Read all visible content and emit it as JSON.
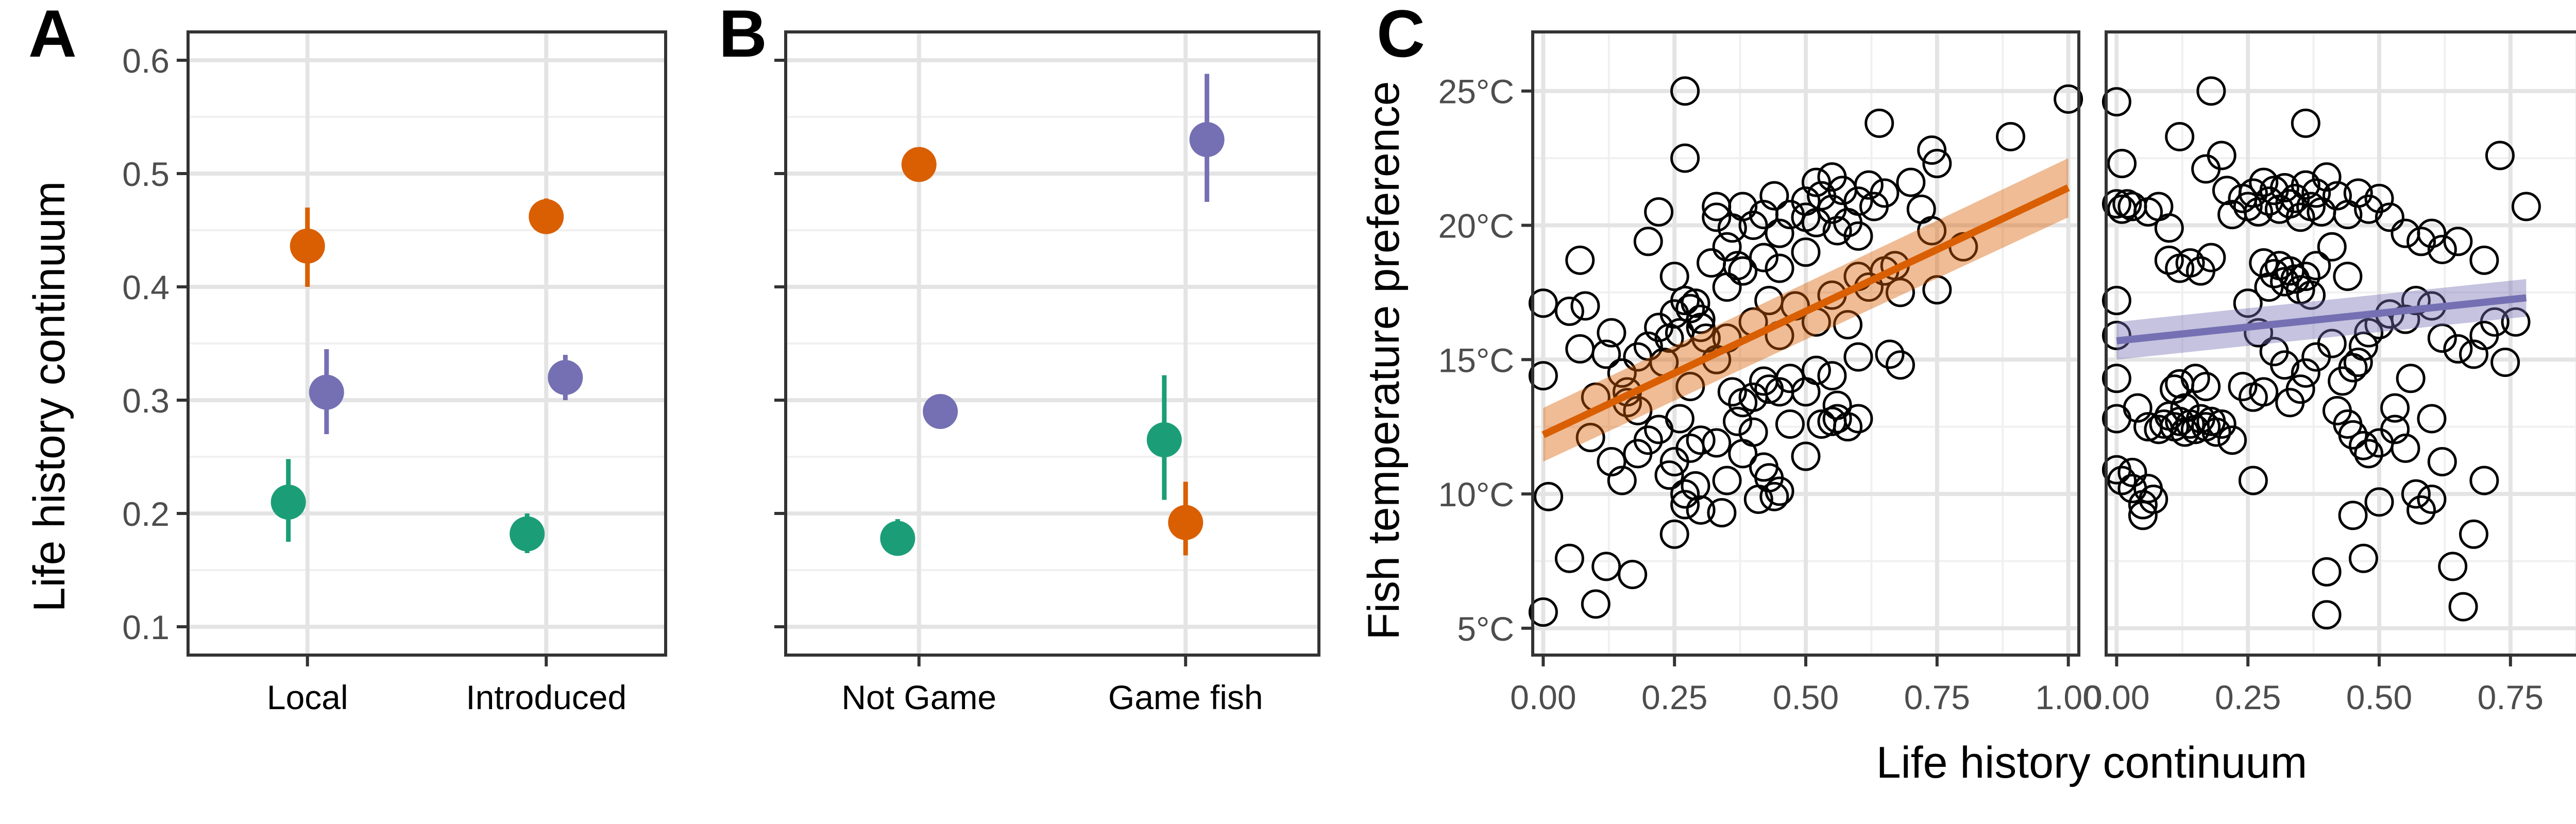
{
  "panels": [
    {
      "id": "A",
      "letter": "A",
      "ylabel": "Life history continuum",
      "ylim": [
        0.1,
        0.6
      ],
      "yticks": [
        0.1,
        0.2,
        0.3,
        0.4,
        0.5,
        0.6
      ],
      "ytick_labels": [
        "0.1",
        "0.2",
        "0.3",
        "0.4",
        "0.5",
        "0.6"
      ],
      "categories": [
        "Local",
        "Introduced"
      ],
      "series": [
        {
          "color": "#1b9e77",
          "values": [
            0.21,
            0.182
          ],
          "lower": [
            0.175,
            0.165
          ],
          "upper": [
            0.248,
            0.2
          ],
          "offset": -0.4
        },
        {
          "color": "#7570b3",
          "values": [
            0.307,
            0.32
          ],
          "lower": [
            0.27,
            0.3
          ],
          "upper": [
            0.345,
            0.34
          ],
          "offset": 0.4
        },
        {
          "color": "#d95f02",
          "values": [
            0.436,
            0.462
          ],
          "lower": [
            0.4,
            0.448
          ],
          "upper": [
            0.47,
            0.478
          ],
          "offset": 0.0
        }
      ]
    },
    {
      "id": "B",
      "letter": "B",
      "ylim": [
        0.1,
        0.6
      ],
      "yticks": [
        0.1,
        0.2,
        0.3,
        0.4,
        0.5,
        0.6
      ],
      "categories": [
        "Not Game",
        "Game fish"
      ],
      "series": [
        {
          "color": "#1b9e77",
          "values": [
            0.178,
            0.265
          ],
          "lower": [
            0.163,
            0.212
          ],
          "upper": [
            0.195,
            0.322
          ],
          "offset": -0.4
        },
        {
          "color": "#7570b3",
          "values": [
            0.29,
            0.53
          ],
          "lower": [
            0.275,
            0.475
          ],
          "upper": [
            0.305,
            0.588
          ],
          "offset": 0.4
        },
        {
          "color": "#d95f02",
          "values": [
            0.508,
            0.192
          ],
          "lower": [
            0.498,
            0.163
          ],
          "upper": [
            0.518,
            0.228
          ],
          "offset": 0.0
        }
      ]
    }
  ],
  "panel_c": {
    "letter": "C",
    "ylabel": "Fish temperature preference",
    "xlabel": "Life history continuum",
    "xlim": [
      -0.02,
      1.02
    ],
    "ylim": [
      4,
      27.2
    ],
    "xticks": [
      0,
      0.25,
      0.5,
      0.75,
      1.0
    ],
    "xtick_labels": [
      "0.00",
      "0.25",
      "0.50",
      "0.75",
      "1.00"
    ],
    "yticks": [
      5,
      10,
      15,
      20,
      25
    ],
    "ytick_labels": [
      "5°C",
      "10°C",
      "15°C",
      "20°C",
      "25°C"
    ],
    "left": {
      "fit": {
        "color": "#d95f02",
        "x": [
          0,
          1
        ],
        "y": [
          12.2,
          21.4
        ],
        "se_lower": [
          11.2,
          20.3
        ],
        "se_upper": [
          13.2,
          22.5
        ]
      },
      "points": [
        [
          0.0,
          17.1
        ],
        [
          0.0,
          14.4
        ],
        [
          0.01,
          9.9
        ],
        [
          0.0,
          5.6
        ],
        [
          0.05,
          7.6
        ],
        [
          0.1,
          5.9
        ],
        [
          0.12,
          7.3
        ],
        [
          0.17,
          7.0
        ],
        [
          0.05,
          16.8
        ],
        [
          0.07,
          18.7
        ],
        [
          0.08,
          17.0
        ],
        [
          0.07,
          15.4
        ],
        [
          0.1,
          13.6
        ],
        [
          0.13,
          16.0
        ],
        [
          0.12,
          15.2
        ],
        [
          0.15,
          14.5
        ],
        [
          0.16,
          13.4
        ],
        [
          0.18,
          15.1
        ],
        [
          0.2,
          15.5
        ],
        [
          0.22,
          16.2
        ],
        [
          0.24,
          15.8
        ],
        [
          0.25,
          16.7
        ],
        [
          0.27,
          17.2
        ],
        [
          0.28,
          16.9
        ],
        [
          0.29,
          17.1
        ],
        [
          0.3,
          16.5
        ],
        [
          0.31,
          15.8
        ],
        [
          0.26,
          16.0
        ],
        [
          0.23,
          14.9
        ],
        [
          0.2,
          19.4
        ],
        [
          0.22,
          20.5
        ],
        [
          0.27,
          22.5
        ],
        [
          0.27,
          25.0
        ],
        [
          0.25,
          18.1
        ],
        [
          0.33,
          20.3
        ],
        [
          0.35,
          19.2
        ],
        [
          0.36,
          19.9
        ],
        [
          0.38,
          18.3
        ],
        [
          0.42,
          20.4
        ],
        [
          0.4,
          20.0
        ],
        [
          0.45,
          19.7
        ],
        [
          0.47,
          20.4
        ],
        [
          0.5,
          20.3
        ],
        [
          0.5,
          20.9
        ],
        [
          0.52,
          20.1
        ],
        [
          0.53,
          21.1
        ],
        [
          0.55,
          20.6
        ],
        [
          0.56,
          19.8
        ],
        [
          0.57,
          21.3
        ],
        [
          0.58,
          20.1
        ],
        [
          0.6,
          19.6
        ],
        [
          0.6,
          20.9
        ],
        [
          0.62,
          21.5
        ],
        [
          0.63,
          20.7
        ],
        [
          0.65,
          21.2
        ],
        [
          0.5,
          19.0
        ],
        [
          0.52,
          21.6
        ],
        [
          0.55,
          21.8
        ],
        [
          0.44,
          21.1
        ],
        [
          0.64,
          23.8
        ],
        [
          0.7,
          21.6
        ],
        [
          0.72,
          20.6
        ],
        [
          0.75,
          22.3
        ],
        [
          0.74,
          22.8
        ],
        [
          0.89,
          23.3
        ],
        [
          1.0,
          24.7
        ],
        [
          0.8,
          19.2
        ],
        [
          0.74,
          19.8
        ],
        [
          0.75,
          17.6
        ],
        [
          0.65,
          18.3
        ],
        [
          0.67,
          18.5
        ],
        [
          0.62,
          17.7
        ],
        [
          0.6,
          18.1
        ],
        [
          0.68,
          17.5
        ],
        [
          0.58,
          16.3
        ],
        [
          0.6,
          15.1
        ],
        [
          0.66,
          15.2
        ],
        [
          0.68,
          14.8
        ],
        [
          0.55,
          14.4
        ],
        [
          0.56,
          13.3
        ],
        [
          0.56,
          12.8
        ],
        [
          0.58,
          12.5
        ],
        [
          0.55,
          12.7
        ],
        [
          0.6,
          12.8
        ],
        [
          0.53,
          12.6
        ],
        [
          0.5,
          11.4
        ],
        [
          0.47,
          12.6
        ],
        [
          0.45,
          13.8
        ],
        [
          0.43,
          13.9
        ],
        [
          0.42,
          14.2
        ],
        [
          0.4,
          13.6
        ],
        [
          0.38,
          13.4
        ],
        [
          0.36,
          13.8
        ],
        [
          0.4,
          12.3
        ],
        [
          0.42,
          11.0
        ],
        [
          0.43,
          10.6
        ],
        [
          0.45,
          10.1
        ],
        [
          0.41,
          9.8
        ],
        [
          0.38,
          11.5
        ],
        [
          0.35,
          10.5
        ],
        [
          0.37,
          12.7
        ],
        [
          0.33,
          11.9
        ],
        [
          0.3,
          12.0
        ],
        [
          0.28,
          11.7
        ],
        [
          0.26,
          12.8
        ],
        [
          0.25,
          11.2
        ],
        [
          0.27,
          10.0
        ],
        [
          0.29,
          10.3
        ],
        [
          0.3,
          9.4
        ],
        [
          0.27,
          9.6
        ],
        [
          0.25,
          8.5
        ],
        [
          0.24,
          10.7
        ],
        [
          0.22,
          12.4
        ],
        [
          0.2,
          12.0
        ],
        [
          0.18,
          11.5
        ],
        [
          0.15,
          10.5
        ],
        [
          0.13,
          11.2
        ],
        [
          0.09,
          12.1
        ],
        [
          0.34,
          9.3
        ],
        [
          0.44,
          9.9
        ],
        [
          0.5,
          13.8
        ],
        [
          0.52,
          14.6
        ],
        [
          0.47,
          14.3
        ],
        [
          0.45,
          15.9
        ],
        [
          0.48,
          17.0
        ],
        [
          0.52,
          16.4
        ],
        [
          0.55,
          17.4
        ],
        [
          0.43,
          17.2
        ],
        [
          0.4,
          16.4
        ],
        [
          0.35,
          15.8
        ],
        [
          0.33,
          15.0
        ],
        [
          0.35,
          17.7
        ],
        [
          0.37,
          18.5
        ],
        [
          0.42,
          18.8
        ],
        [
          0.45,
          18.4
        ],
        [
          0.38,
          20.7
        ],
        [
          0.32,
          18.6
        ],
        [
          0.3,
          16.2
        ],
        [
          0.28,
          14.0
        ],
        [
          0.18,
          13.1
        ],
        [
          0.16,
          13.8
        ],
        [
          0.33,
          20.7
        ]
      ]
    },
    "right": {
      "fit": {
        "color": "#7570b3",
        "x": [
          0,
          0.78
        ],
        "y": [
          15.7,
          17.3
        ],
        "se_lower": [
          15.0,
          16.6
        ],
        "se_upper": [
          16.4,
          18.0
        ]
      },
      "points": [
        [
          0.0,
          24.6
        ],
        [
          0.01,
          22.3
        ],
        [
          0.0,
          20.8
        ],
        [
          0.01,
          20.6
        ],
        [
          0.02,
          20.8
        ],
        [
          0.03,
          20.7
        ],
        [
          0.06,
          20.5
        ],
        [
          0.08,
          20.7
        ],
        [
          0.1,
          19.9
        ],
        [
          0.0,
          17.2
        ],
        [
          0.0,
          15.9
        ],
        [
          0.0,
          14.3
        ],
        [
          0.0,
          12.8
        ],
        [
          0.0,
          10.9
        ],
        [
          0.01,
          10.5
        ],
        [
          0.03,
          10.8
        ],
        [
          0.03,
          10.2
        ],
        [
          0.05,
          9.6
        ],
        [
          0.05,
          9.2
        ],
        [
          0.06,
          10.2
        ],
        [
          0.07,
          9.8
        ],
        [
          0.08,
          12.4
        ],
        [
          0.09,
          12.6
        ],
        [
          0.1,
          12.9
        ],
        [
          0.11,
          12.5
        ],
        [
          0.12,
          12.7
        ],
        [
          0.13,
          12.3
        ],
        [
          0.14,
          12.6
        ],
        [
          0.15,
          12.4
        ],
        [
          0.16,
          12.8
        ],
        [
          0.17,
          12.5
        ],
        [
          0.18,
          12.7
        ],
        [
          0.19,
          12.3
        ],
        [
          0.2,
          12.6
        ],
        [
          0.12,
          14.1
        ],
        [
          0.15,
          14.3
        ],
        [
          0.17,
          14.0
        ],
        [
          0.13,
          13.2
        ],
        [
          0.1,
          18.7
        ],
        [
          0.12,
          18.4
        ],
        [
          0.14,
          18.6
        ],
        [
          0.16,
          18.3
        ],
        [
          0.18,
          18.8
        ],
        [
          0.12,
          23.3
        ],
        [
          0.17,
          22.1
        ],
        [
          0.18,
          25.0
        ],
        [
          0.2,
          22.6
        ],
        [
          0.21,
          21.3
        ],
        [
          0.22,
          20.4
        ],
        [
          0.24,
          21.0
        ],
        [
          0.25,
          20.7
        ],
        [
          0.26,
          21.2
        ],
        [
          0.27,
          20.5
        ],
        [
          0.28,
          21.6
        ],
        [
          0.29,
          20.9
        ],
        [
          0.3,
          21.3
        ],
        [
          0.31,
          20.6
        ],
        [
          0.32,
          21.4
        ],
        [
          0.33,
          20.8
        ],
        [
          0.34,
          21.0
        ],
        [
          0.35,
          20.3
        ],
        [
          0.36,
          21.5
        ],
        [
          0.37,
          20.7
        ],
        [
          0.38,
          21.2
        ],
        [
          0.39,
          20.5
        ],
        [
          0.4,
          21.8
        ],
        [
          0.42,
          21.1
        ],
        [
          0.44,
          20.4
        ],
        [
          0.46,
          21.2
        ],
        [
          0.48,
          20.6
        ],
        [
          0.5,
          21.0
        ],
        [
          0.52,
          20.3
        ],
        [
          0.55,
          19.7
        ],
        [
          0.58,
          19.4
        ],
        [
          0.6,
          19.7
        ],
        [
          0.62,
          19.1
        ],
        [
          0.65,
          19.4
        ],
        [
          0.7,
          18.7
        ],
        [
          0.73,
          22.6
        ],
        [
          0.78,
          20.7
        ],
        [
          0.36,
          23.8
        ],
        [
          0.3,
          18.2
        ],
        [
          0.31,
          18.5
        ],
        [
          0.32,
          17.9
        ],
        [
          0.33,
          18.3
        ],
        [
          0.34,
          18.0
        ],
        [
          0.35,
          17.6
        ],
        [
          0.36,
          18.1
        ],
        [
          0.37,
          17.4
        ],
        [
          0.28,
          18.6
        ],
        [
          0.29,
          17.7
        ],
        [
          0.25,
          17.1
        ],
        [
          0.27,
          16.0
        ],
        [
          0.3,
          15.3
        ],
        [
          0.32,
          14.8
        ],
        [
          0.33,
          13.4
        ],
        [
          0.35,
          13.9
        ],
        [
          0.36,
          14.5
        ],
        [
          0.38,
          15.1
        ],
        [
          0.41,
          15.6
        ],
        [
          0.43,
          14.2
        ],
        [
          0.45,
          14.7
        ],
        [
          0.46,
          14.9
        ],
        [
          0.47,
          15.5
        ],
        [
          0.48,
          16.0
        ],
        [
          0.5,
          16.3
        ],
        [
          0.52,
          16.7
        ],
        [
          0.55,
          16.5
        ],
        [
          0.57,
          17.2
        ],
        [
          0.6,
          17.0
        ],
        [
          0.62,
          15.8
        ],
        [
          0.65,
          15.4
        ],
        [
          0.68,
          15.2
        ],
        [
          0.7,
          15.9
        ],
        [
          0.72,
          16.4
        ],
        [
          0.74,
          14.9
        ],
        [
          0.76,
          16.4
        ],
        [
          0.24,
          14.0
        ],
        [
          0.26,
          13.6
        ],
        [
          0.28,
          13.8
        ],
        [
          0.22,
          12.0
        ],
        [
          0.42,
          13.1
        ],
        [
          0.44,
          12.6
        ],
        [
          0.45,
          12.2
        ],
        [
          0.47,
          11.8
        ],
        [
          0.48,
          11.5
        ],
        [
          0.5,
          11.9
        ],
        [
          0.53,
          12.4
        ],
        [
          0.55,
          11.7
        ],
        [
          0.57,
          10.0
        ],
        [
          0.58,
          9.4
        ],
        [
          0.6,
          9.8
        ],
        [
          0.62,
          11.2
        ],
        [
          0.5,
          9.7
        ],
        [
          0.47,
          7.6
        ],
        [
          0.4,
          7.1
        ],
        [
          0.4,
          5.5
        ],
        [
          0.64,
          7.3
        ],
        [
          0.68,
          8.5
        ],
        [
          0.66,
          5.8
        ],
        [
          0.7,
          10.5
        ],
        [
          0.26,
          10.5
        ],
        [
          0.06,
          12.5
        ],
        [
          0.04,
          13.2
        ],
        [
          0.11,
          13.9
        ],
        [
          0.45,
          9.2
        ],
        [
          0.53,
          13.2
        ],
        [
          0.56,
          14.3
        ],
        [
          0.6,
          12.8
        ],
        [
          0.38,
          18.5
        ],
        [
          0.41,
          19.2
        ],
        [
          0.44,
          18.1
        ]
      ]
    }
  }
}
